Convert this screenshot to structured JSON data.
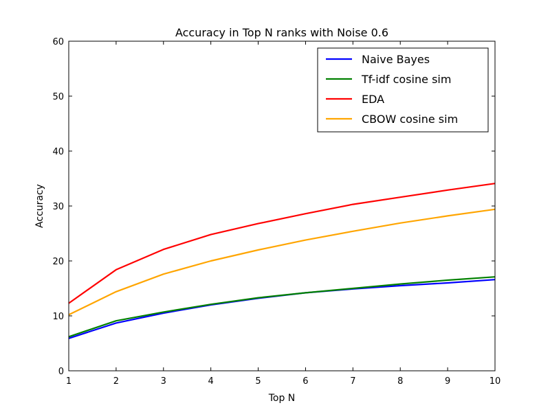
{
  "chart_data": {
    "type": "line",
    "title": "Accuracy in Top N ranks with Noise 0.6",
    "xlabel": "Top N",
    "ylabel": "Accuracy",
    "x": [
      1,
      2,
      3,
      4,
      5,
      6,
      7,
      8,
      9,
      10
    ],
    "xlim": [
      1,
      10
    ],
    "ylim": [
      0,
      60
    ],
    "xticks": [
      "1",
      "2",
      "3",
      "4",
      "5",
      "6",
      "7",
      "8",
      "9",
      "10"
    ],
    "yticks": [
      "0",
      "10",
      "20",
      "30",
      "40",
      "50",
      "60"
    ],
    "grid": false,
    "legend_position": "top-right",
    "series": [
      {
        "name": "Naive Bayes",
        "color": "#0000ff",
        "values": [
          5.9,
          8.7,
          10.5,
          12.0,
          13.2,
          14.2,
          14.9,
          15.5,
          16.0,
          16.6
        ]
      },
      {
        "name": "Tf-idf cosine sim",
        "color": "#008000",
        "values": [
          6.2,
          9.1,
          10.7,
          12.1,
          13.3,
          14.2,
          15.0,
          15.8,
          16.5,
          17.1
        ]
      },
      {
        "name": "EDA",
        "color": "#ff0000",
        "values": [
          12.3,
          18.4,
          22.1,
          24.8,
          26.8,
          28.6,
          30.3,
          31.6,
          32.9,
          34.1
        ]
      },
      {
        "name": "CBOW cosine sim",
        "color": "#ffa500",
        "values": [
          10.2,
          14.4,
          17.6,
          20.0,
          22.0,
          23.8,
          25.4,
          26.9,
          28.2,
          29.4
        ]
      }
    ]
  }
}
